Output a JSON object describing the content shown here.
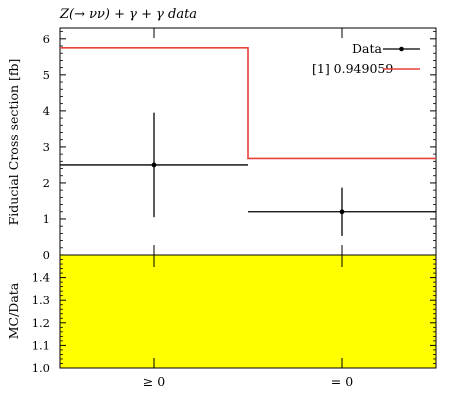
{
  "title": "Z(→ νν) + γ + γ data",
  "chart_data": [
    {
      "type": "line",
      "title": "Z(→ νν) + γ + γ data",
      "ylabel": "Fiducial Cross section [fb]",
      "xlabel": "",
      "categories": [
        "≥ 0",
        "= 0"
      ],
      "ylim": [
        0,
        6.3
      ],
      "yticks": [
        "0",
        "1",
        "2",
        "3",
        "4",
        "5",
        "6"
      ],
      "legend_position": "top-right",
      "series": [
        {
          "name": "Data",
          "style": "points-with-errorbars",
          "color": "#000000",
          "values": [
            2.5,
            1.2
          ],
          "yerr": [
            1.45,
            0.67
          ]
        },
        {
          "name": "[1] 0.949059",
          "style": "step",
          "color": "#e8413a",
          "values": [
            5.75,
            2.68
          ]
        }
      ]
    },
    {
      "type": "area",
      "ylabel": "MC/Data",
      "categories": [
        "≥ 0",
        "= 0"
      ],
      "ylim": [
        1.0,
        1.5
      ],
      "yticks": [
        "1.0",
        "1.1",
        "1.2",
        "1.3",
        "1.4"
      ],
      "fill_color": "#ffff00",
      "values": [
        1.5,
        1.5
      ]
    }
  ]
}
